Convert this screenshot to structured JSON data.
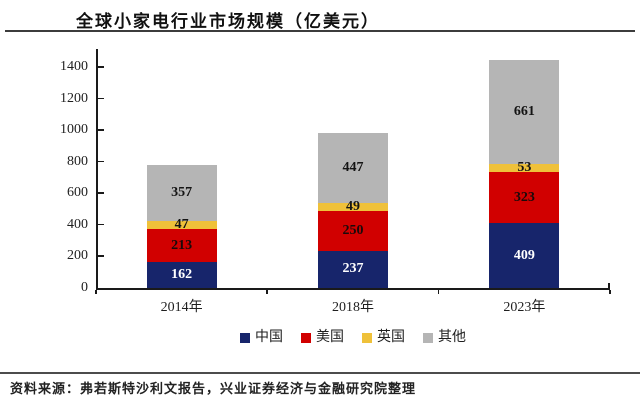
{
  "page": {
    "title": "全球小家电行业市场规模（亿美元）",
    "source_note": "资料来源：弗若斯特沙利文报告，兴业证券经济与金融研究院整理"
  },
  "colors": {
    "china_blue": "#17256b",
    "usa_red": "#d10000",
    "uk_yellow": "#efc13a",
    "other_gray": "#b5b5b5",
    "axis": "#1a1a1a"
  },
  "chart_data": {
    "type": "bar",
    "stacked": true,
    "title": "全球小家电行业市场规模（亿美元）",
    "categories": [
      "2014年",
      "2018年",
      "2023年"
    ],
    "series": [
      {
        "name": "中国",
        "color": "#17256b",
        "label_color": "#ffffff",
        "values": [
          162,
          237,
          409
        ]
      },
      {
        "name": "美国",
        "color": "#d10000",
        "label_color": "#1a0a0a",
        "values": [
          213,
          250,
          323
        ]
      },
      {
        "name": "英国",
        "color": "#efc13a",
        "label_color": "#141414",
        "values": [
          47,
          49,
          53
        ]
      },
      {
        "name": "其他",
        "color": "#b5b5b5",
        "label_color": "#141414",
        "values": [
          357,
          447,
          661
        ]
      }
    ],
    "totals": [
      779,
      983,
      1446
    ],
    "xlabel": "",
    "ylabel": "",
    "ylim": [
      0,
      1400
    ],
    "yticks": [
      0,
      200,
      400,
      600,
      800,
      1000,
      1200,
      1400
    ],
    "grid": false,
    "data_labels": true,
    "legend_position": "bottom"
  }
}
